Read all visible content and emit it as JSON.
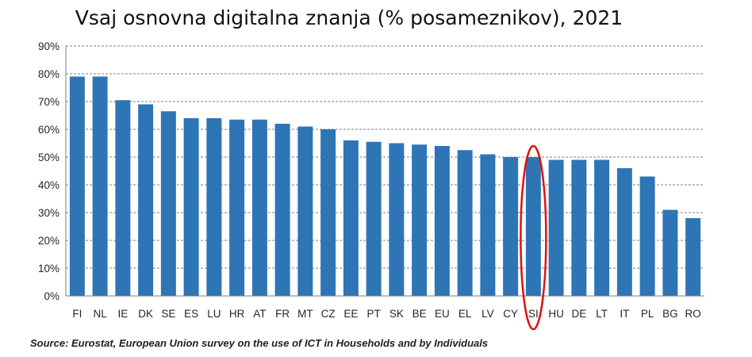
{
  "chart_data": {
    "type": "bar",
    "title": "Vsaj osnovna digitalna znanja (% posameznikov), 2021",
    "xlabel": "",
    "ylabel": "",
    "ylim": [
      0,
      90
    ],
    "yticks": [
      "0%",
      "10%",
      "20%",
      "30%",
      "40%",
      "50%",
      "60%",
      "70%",
      "80%",
      "90%"
    ],
    "categories": [
      "FI",
      "NL",
      "IE",
      "DK",
      "SE",
      "ES",
      "LU",
      "HR",
      "AT",
      "FR",
      "MT",
      "CZ",
      "EE",
      "PT",
      "SK",
      "BE",
      "EU",
      "EL",
      "LV",
      "CY",
      "SI",
      "HU",
      "DE",
      "LT",
      "IT",
      "PL",
      "BG",
      "RO"
    ],
    "values": [
      79,
      79,
      70.5,
      69,
      66.5,
      64,
      64,
      63.5,
      63.5,
      62,
      61,
      60,
      56,
      55.5,
      55,
      54.5,
      54,
      52.5,
      51,
      50,
      50,
      49,
      49,
      49,
      46,
      43,
      31,
      28
    ],
    "grid": true,
    "legend": "none",
    "bar_color": "#2E75B6",
    "highlight": {
      "category": "SI",
      "color": "#E01010"
    },
    "source": "Source: Eurostat, European Union survey on the use of ICT in Households and by Individuals"
  }
}
